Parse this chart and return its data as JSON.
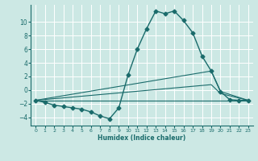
{
  "xlabel": "Humidex (Indice chaleur)",
  "bg_color": "#cce8e4",
  "line_color": "#1a6b6b",
  "grid_color": "#ffffff",
  "xlim": [
    -0.5,
    23.5
  ],
  "ylim": [
    -5.2,
    12.5
  ],
  "yticks": [
    -4,
    -2,
    0,
    2,
    4,
    6,
    8,
    10
  ],
  "xticks": [
    0,
    1,
    2,
    3,
    4,
    5,
    6,
    7,
    8,
    9,
    10,
    11,
    12,
    13,
    14,
    15,
    16,
    17,
    18,
    19,
    20,
    21,
    22,
    23
  ],
  "series": [
    {
      "x": [
        0,
        1,
        2,
        3,
        4,
        5,
        6,
        7,
        8,
        9,
        10,
        11,
        12,
        13,
        14,
        15,
        16,
        17,
        18,
        19,
        20,
        21,
        22,
        23
      ],
      "y": [
        -1.5,
        -1.8,
        -2.2,
        -2.4,
        -2.6,
        -2.8,
        -3.2,
        -3.8,
        -4.2,
        -2.6,
        2.2,
        6.0,
        9.0,
        11.6,
        11.2,
        11.6,
        10.2,
        8.4,
        5.0,
        2.8,
        -0.2,
        -1.4,
        -1.5,
        -1.5
      ],
      "marker": "D",
      "markersize": 2.5,
      "linewidth": 1.0
    },
    {
      "x": [
        0,
        19,
        20,
        23
      ],
      "y": [
        -1.5,
        2.8,
        -0.2,
        -1.5
      ],
      "marker": null,
      "linewidth": 0.8
    },
    {
      "x": [
        0,
        19,
        20,
        23
      ],
      "y": [
        -1.5,
        0.8,
        -0.5,
        -1.5
      ],
      "marker": null,
      "linewidth": 0.8
    },
    {
      "x": [
        0,
        23
      ],
      "y": [
        -1.5,
        -1.5
      ],
      "marker": null,
      "linewidth": 0.8
    }
  ]
}
